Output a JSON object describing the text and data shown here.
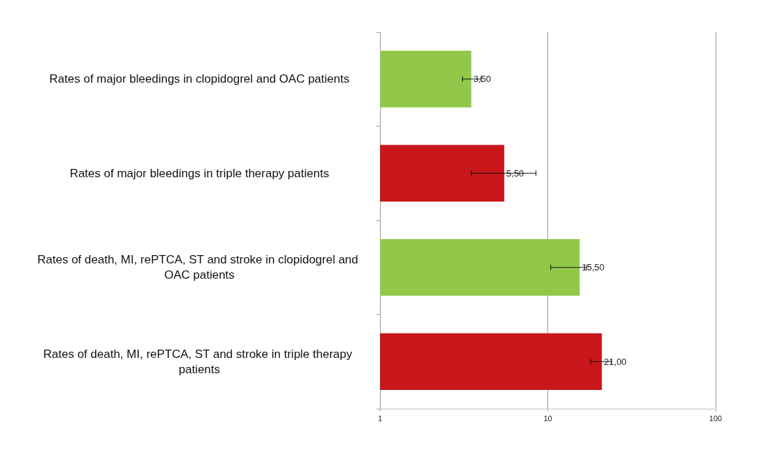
{
  "chart_data": {
    "type": "bar",
    "orientation": "horizontal",
    "log": "x",
    "categories": [
      "Rates of major bleedings in clopidogrel and OAC patients",
      "Rates of major bleedings in triple therapy patients",
      "Rates of death, MI, rePTCA, ST and stroke in clopidogrel and OAC patients",
      "Rates of death, MI, rePTCA, ST and stroke in triple therapy patients"
    ],
    "values": [
      3.5,
      5.5,
      15.5,
      21
    ],
    "colors": [
      "#92c84a",
      "#c8161b",
      "#92c84a",
      "#c8161b"
    ],
    "errors": [
      [
        3.1,
        4
      ],
      [
        3.5,
        8.5
      ],
      [
        10.4,
        17
      ],
      [
        18,
        24
      ]
    ],
    "value_labels": [
      "3,50",
      "5,50",
      "15,50",
      "21,00"
    ],
    "xlim": [
      1,
      100
    ],
    "xticks": [
      1,
      10,
      100
    ],
    "grid": "x"
  }
}
